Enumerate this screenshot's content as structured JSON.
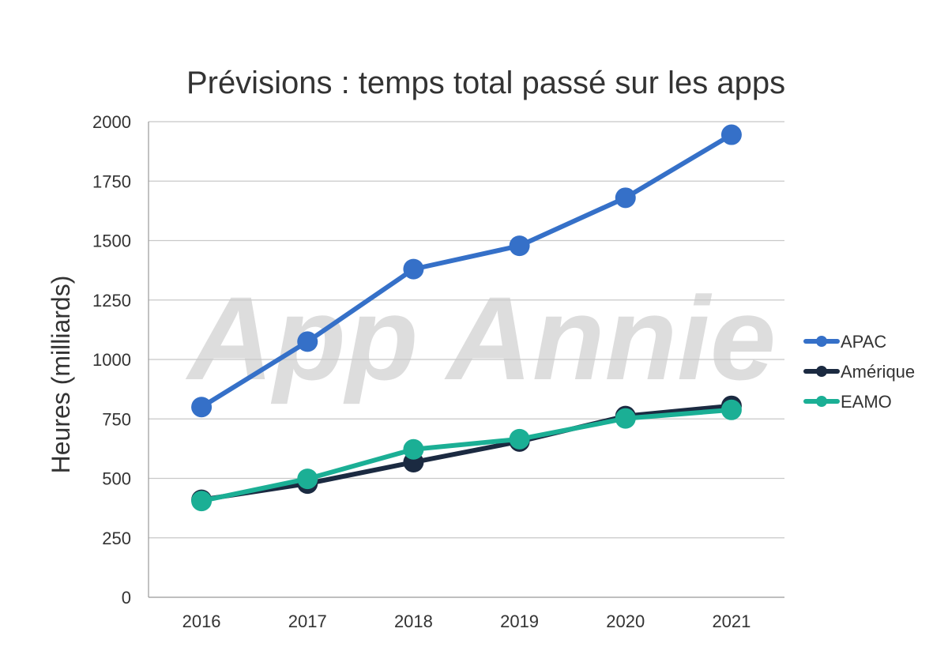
{
  "chart_data": {
    "type": "line",
    "title": "Prévisions : temps total passé sur les apps",
    "xlabel": "",
    "ylabel": "Heures (milliards)",
    "x": [
      "2016",
      "2017",
      "2018",
      "2019",
      "2020",
      "2021"
    ],
    "ylim": [
      0,
      2000
    ],
    "yticks": [
      0,
      250,
      500,
      750,
      1000,
      1250,
      1500,
      1750,
      2000
    ],
    "grid": true,
    "legend_position": "right",
    "watermark": "App Annie",
    "series": [
      {
        "name": "APAC",
        "color": "#3570C8",
        "values": [
          800,
          1075,
          1380,
          1478,
          1680,
          1945
        ]
      },
      {
        "name": "Amérique",
        "color": "#1B2A41",
        "values": [
          410,
          478,
          568,
          655,
          762,
          805
        ]
      },
      {
        "name": "EAMO",
        "color": "#1BAF95",
        "values": [
          405,
          498,
          622,
          665,
          752,
          788
        ]
      }
    ]
  }
}
